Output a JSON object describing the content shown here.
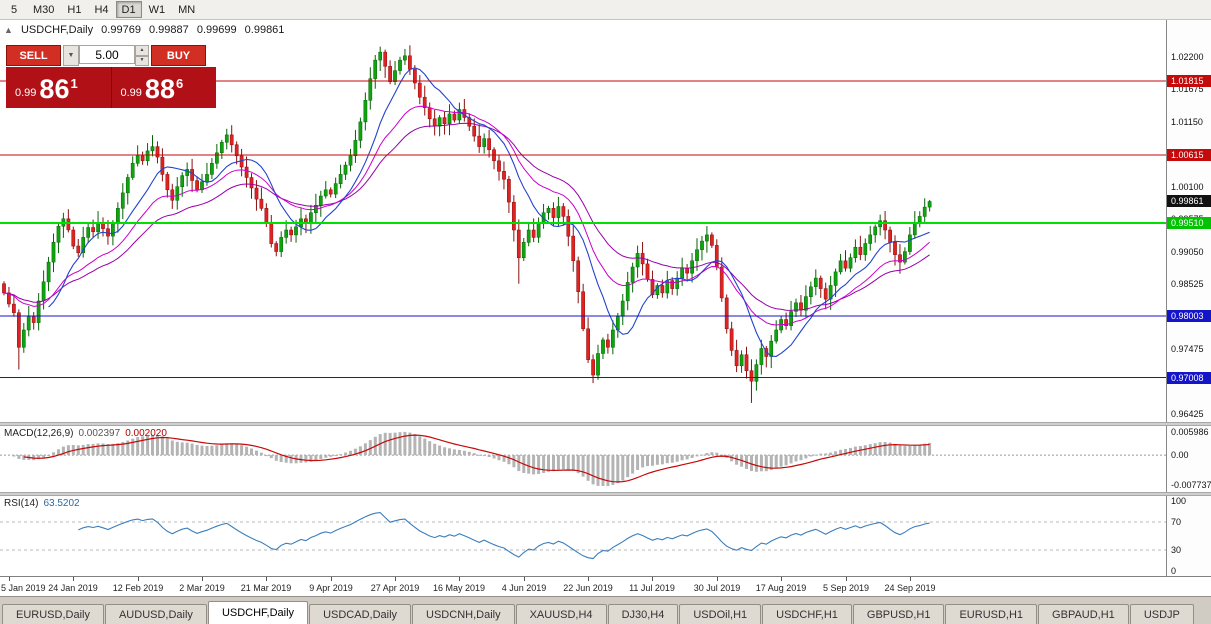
{
  "toolbar": {
    "timeframes": [
      {
        "label": "5",
        "active": false
      },
      {
        "label": "M30",
        "active": false
      },
      {
        "label": "H1",
        "active": false
      },
      {
        "label": "H4",
        "active": false
      },
      {
        "label": "D1",
        "active": true
      },
      {
        "label": "W1",
        "active": false
      },
      {
        "label": "MN",
        "active": false
      }
    ]
  },
  "icons": {
    "collapse": "▲",
    "dropdown": "▼",
    "spin_up": "▲",
    "spin_down": "▼"
  },
  "chart_header": {
    "symbol": "USDCHF,Daily",
    "open": "0.99769",
    "high": "0.99887",
    "low": "0.99699",
    "close": "0.99861"
  },
  "trade_panel": {
    "sell_label": "SELL",
    "buy_label": "BUY",
    "volume": "5.00",
    "sell_price": {
      "prefix": "0.99",
      "big": "86",
      "sup": "1"
    },
    "buy_price": {
      "prefix": "0.99",
      "big": "88",
      "sup": "6"
    }
  },
  "price_axis": {
    "ticks": [
      "1.02200",
      "1.01675",
      "1.01150",
      "1.00625",
      "1.00100",
      "0.99575",
      "0.99050",
      "0.98525",
      "0.98000",
      "0.97475",
      "0.96950",
      "0.96425"
    ],
    "badges": [
      {
        "label": "1.01815",
        "price": 1.01815,
        "bg": "#c40a0a",
        "fg": "#ffffff"
      },
      {
        "label": "1.00615",
        "price": 1.00615,
        "bg": "#c40a0a",
        "fg": "#ffffff"
      },
      {
        "label": "0.99861",
        "price": 0.99861,
        "bg": "#111111",
        "fg": "#ffffff"
      },
      {
        "label": "0.99510",
        "price": 0.9951,
        "bg": "#00c400",
        "fg": "#ffffff"
      },
      {
        "label": "0.98003",
        "price": 0.98003,
        "bg": "#1414c8",
        "fg": "#ffffff"
      },
      {
        "label": "0.97008",
        "price": 0.97008,
        "bg": "#1414c8",
        "fg": "#ffffff"
      }
    ]
  },
  "hlines": [
    {
      "price": 1.01815,
      "color": "#c40a0a",
      "width": 1
    },
    {
      "price": 1.00615,
      "color": "#c40a0a",
      "width": 1
    },
    {
      "price": 0.9951,
      "color": "#00e000",
      "width": 2
    },
    {
      "price": 0.98003,
      "color": "#1414c8",
      "width": 1
    },
    {
      "price": 0.97008,
      "color": "#1414c8",
      "width": 1
    }
  ],
  "colors": {
    "up": "#0fa30f",
    "up_stroke": "#056505",
    "down": "#e02222",
    "down_stroke": "#8a0f0f",
    "ma_fast": "#2244cc",
    "ma_mid": "#cc00cc",
    "ma_slow": "#9900aa",
    "macd_hist": "#b4b4b4",
    "macd_signal": "#c40a0a",
    "rsi": "#3a7ebf"
  },
  "chart_data": {
    "type": "candlestick",
    "symbol": "USDCHF",
    "timeframe": "Daily",
    "y_range": [
      0.9629,
      1.028
    ],
    "x_labels": [
      "5 Jan 2019",
      "24 Jan 2019",
      "12 Feb 2019",
      "2 Mar 2019",
      "21 Mar 2019",
      "9 Apr 2019",
      "27 Apr 2019",
      "16 May 2019",
      "4 Jun 2019",
      "22 Jun 2019",
      "11 Jul 2019",
      "30 Jul 2019",
      "17 Aug 2019",
      "5 Sep 2019",
      "24 Sep 2019"
    ],
    "x_label_indices": [
      1,
      14,
      27,
      40,
      53,
      66,
      79,
      92,
      105,
      118,
      131,
      144,
      157,
      170,
      183
    ],
    "closes": [
      0.9838,
      0.982,
      0.9806,
      0.975,
      0.9778,
      0.98,
      0.979,
      0.9825,
      0.9856,
      0.9888,
      0.992,
      0.9946,
      0.9958,
      0.994,
      0.9914,
      0.9903,
      0.9928,
      0.9944,
      0.9937,
      0.9952,
      0.9942,
      0.993,
      0.9952,
      0.9975,
      1.0,
      1.0025,
      1.0048,
      1.006,
      1.0052,
      1.0068,
      1.0075,
      1.0058,
      1.003,
      1.0005,
      0.9988,
      1.001,
      1.0028,
      1.0038,
      1.002,
      1.0005,
      1.0018,
      1.003,
      1.0048,
      1.0065,
      1.0082,
      1.0094,
      1.0078,
      1.006,
      1.0042,
      1.0025,
      1.0008,
      0.999,
      0.9975,
      0.995,
      0.9918,
      0.9905,
      0.9928,
      0.994,
      0.9932,
      0.9945,
      0.9958,
      0.995,
      0.9968,
      0.998,
      0.9995,
      1.0005,
      0.9998,
      1.0015,
      1.003,
      1.0045,
      1.006,
      1.0085,
      1.0115,
      1.015,
      1.0185,
      1.0215,
      1.0228,
      1.0205,
      1.018,
      1.0198,
      1.0215,
      1.0222,
      1.02,
      1.0178,
      1.0155,
      1.0138,
      1.012,
      1.0108,
      1.0122,
      1.0112,
      1.0128,
      1.0118,
      1.0135,
      1.0122,
      1.0108,
      1.0092,
      1.0075,
      1.0088,
      1.007,
      1.0052,
      1.0035,
      1.0022,
      0.9985,
      0.994,
      0.9895,
      0.992,
      0.994,
      0.9928,
      0.9952,
      0.9968,
      0.9975,
      0.996,
      0.9978,
      0.9962,
      0.993,
      0.989,
      0.984,
      0.978,
      0.973,
      0.9705,
      0.974,
      0.9762,
      0.975,
      0.9778,
      0.98,
      0.9825,
      0.9855,
      0.988,
      0.9902,
      0.9885,
      0.986,
      0.9835,
      0.985,
      0.9838,
      0.9858,
      0.9845,
      0.9862,
      0.9878,
      0.987,
      0.989,
      0.9908,
      0.9922,
      0.9932,
      0.9915,
      0.988,
      0.983,
      0.978,
      0.9745,
      0.972,
      0.9738,
      0.9712,
      0.9695,
      0.9722,
      0.9748,
      0.9735,
      0.976,
      0.9778,
      0.9795,
      0.9785,
      0.9808,
      0.9822,
      0.981,
      0.9832,
      0.9848,
      0.9862,
      0.9845,
      0.9828,
      0.985,
      0.9872,
      0.989,
      0.9878,
      0.9895,
      0.9912,
      0.99,
      0.9918,
      0.9932,
      0.9945,
      0.9955,
      0.994,
      0.992,
      0.99,
      0.9888,
      0.9905,
      0.9932,
      0.9952,
      0.9962,
      0.9977,
      0.99861
    ],
    "wick_overrides": {
      "3": {
        "low": 0.9714
      },
      "76": {
        "high": 1.0237
      },
      "104": {
        "low": 0.9853
      },
      "119": {
        "low": 0.9692
      },
      "151": {
        "low": 0.966
      },
      "187": {
        "high": 0.99887,
        "low": 0.99699
      }
    }
  },
  "macd_panel": {
    "name": "MACD(12,26,9)",
    "value_main": "0.002397",
    "value_signal": "0.002020",
    "ticks": [
      "0.005986",
      "0.00",
      "-0.007737"
    ],
    "range": [
      -0.0095,
      0.0075
    ]
  },
  "rsi_panel": {
    "name": "RSI(14)",
    "value": "63.5202",
    "ticks": [
      "100",
      "70",
      "30",
      "0"
    ],
    "levels": [
      70,
      30
    ],
    "range": [
      -7,
      107
    ]
  },
  "tabs": [
    {
      "label": "EURUSD,Daily",
      "active": false
    },
    {
      "label": "AUDUSD,Daily",
      "active": false
    },
    {
      "label": "USDCHF,Daily",
      "active": true
    },
    {
      "label": "USDCAD,Daily",
      "active": false
    },
    {
      "label": "USDCNH,Daily",
      "active": false
    },
    {
      "label": "XAUUSD,H4",
      "active": false
    },
    {
      "label": "DJ30,H4",
      "active": false
    },
    {
      "label": "USDOil,H1",
      "active": false
    },
    {
      "label": "USDCHF,H1",
      "active": false
    },
    {
      "label": "GBPUSD,H1",
      "active": false
    },
    {
      "label": "EURUSD,H1",
      "active": false
    },
    {
      "label": "GBPAUD,H1",
      "active": false
    },
    {
      "label": "USDJP",
      "active": false
    }
  ]
}
